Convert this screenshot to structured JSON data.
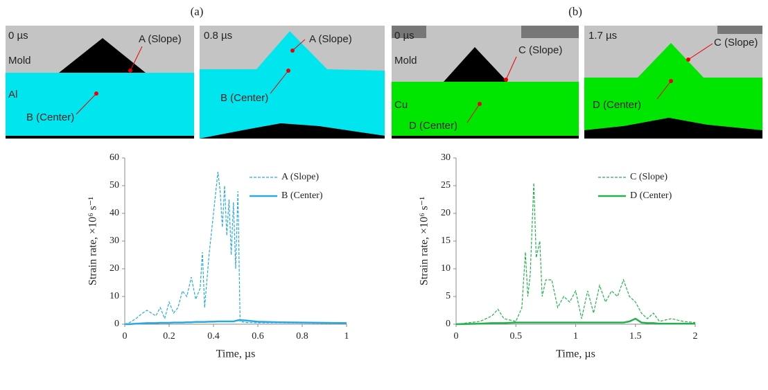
{
  "figure": {
    "panels": [
      {
        "label": "(a)",
        "snapshots": [
          {
            "time": "0 µs",
            "labels": [
              "Mold",
              "Al",
              "A (Slope)",
              "B (Center)"
            ]
          },
          {
            "time": "0.8 µs",
            "labels": [
              "A (Slope)",
              "B (Center)"
            ]
          }
        ]
      },
      {
        "label": "(b)",
        "snapshots": [
          {
            "time": "0 µs",
            "labels": [
              "Mold",
              "Cu",
              "C (Slope)",
              "D (Center)"
            ]
          },
          {
            "time": "1.7 µs",
            "labels": [
              "C (Slope)",
              "D (Center)"
            ]
          }
        ]
      }
    ]
  },
  "chart_data": [
    {
      "type": "line",
      "xlabel": "Time, µs",
      "ylabel": "Strain rate, ×10⁶ s⁻¹",
      "xlim": [
        0,
        1
      ],
      "xticks": [
        0,
        0.2,
        0.4,
        0.6,
        0.8,
        1
      ],
      "ylim": [
        0,
        60
      ],
      "yticks": [
        0,
        10,
        20,
        30,
        40,
        50,
        60
      ],
      "x": [
        0,
        0.02,
        0.05,
        0.08,
        0.1,
        0.12,
        0.14,
        0.16,
        0.18,
        0.2,
        0.22,
        0.24,
        0.26,
        0.28,
        0.3,
        0.32,
        0.34,
        0.35,
        0.36,
        0.38,
        0.4,
        0.42,
        0.43,
        0.44,
        0.45,
        0.46,
        0.47,
        0.48,
        0.49,
        0.5,
        0.51,
        0.52,
        0.55,
        0.6,
        0.7,
        0.8,
        0.9,
        1
      ],
      "series": [
        {
          "name": "A (Slope)",
          "color": "#29a9e0",
          "style": "dashed",
          "values": [
            0,
            0.5,
            2,
            4,
            5,
            4,
            3,
            6,
            2,
            8,
            4,
            6,
            12,
            10,
            17,
            9,
            13,
            26,
            6,
            25,
            40,
            55,
            48,
            35,
            50,
            32,
            45,
            25,
            44,
            20,
            48,
            1,
            0.6,
            0.5,
            0.5,
            0.4,
            0.3,
            0.3
          ]
        },
        {
          "name": "B (Center)",
          "color": "#29a9e0",
          "style": "solid",
          "values": [
            0,
            0,
            0.2,
            0.3,
            0.4,
            0.4,
            0.4,
            0.5,
            0.5,
            0.5,
            0.6,
            0.6,
            0.6,
            0.7,
            0.7,
            0.8,
            0.8,
            0.8,
            0.8,
            0.9,
            0.9,
            1,
            1,
            1,
            1,
            1,
            1,
            1,
            1,
            1.2,
            1.4,
            1.5,
            1.3,
            0.9,
            0.7,
            0.6,
            0.5,
            0.4
          ]
        }
      ]
    },
    {
      "type": "line",
      "xlabel": "Time, µs",
      "ylabel": "Strain rate, ×10⁶ s⁻¹",
      "xlim": [
        0,
        2
      ],
      "xticks": [
        0,
        0.5,
        1,
        1.5,
        2
      ],
      "ylim": [
        0,
        30
      ],
      "yticks": [
        0,
        5,
        10,
        15,
        20,
        25,
        30
      ],
      "x": [
        0,
        0.2,
        0.3,
        0.35,
        0.4,
        0.5,
        0.55,
        0.58,
        0.6,
        0.62,
        0.65,
        0.67,
        0.7,
        0.72,
        0.75,
        0.8,
        0.85,
        0.9,
        0.95,
        1,
        1.05,
        1.1,
        1.15,
        1.2,
        1.25,
        1.3,
        1.35,
        1.4,
        1.45,
        1.5,
        1.55,
        1.6,
        1.65,
        1.7,
        1.8,
        1.9,
        2
      ],
      "series": [
        {
          "name": "C (Slope)",
          "color": "#22b24c",
          "style": "dashed",
          "values": [
            0,
            0.5,
            1.5,
            2.7,
            1,
            0.5,
            3,
            13,
            5,
            9,
            25.5,
            12,
            15,
            5,
            8,
            8,
            3,
            5,
            4,
            6,
            1,
            6,
            2,
            7,
            4,
            6,
            5,
            8,
            5,
            4,
            2,
            1,
            2,
            0.5,
            1,
            0.5,
            0.3
          ]
        },
        {
          "name": "D (Center)",
          "color": "#22b24c",
          "style": "solid",
          "values": [
            0,
            0.1,
            0.2,
            0.2,
            0.2,
            0.3,
            0.3,
            0.3,
            0.3,
            0.3,
            0.3,
            0.3,
            0.3,
            0.3,
            0.3,
            0.3,
            0.3,
            0.3,
            0.3,
            0.3,
            0.3,
            0.3,
            0.3,
            0.3,
            0.3,
            0.3,
            0.3,
            0.3,
            0.5,
            1,
            0.3,
            0.2,
            0.2,
            0.1,
            0.1,
            0.1,
            0.1
          ]
        }
      ]
    }
  ]
}
